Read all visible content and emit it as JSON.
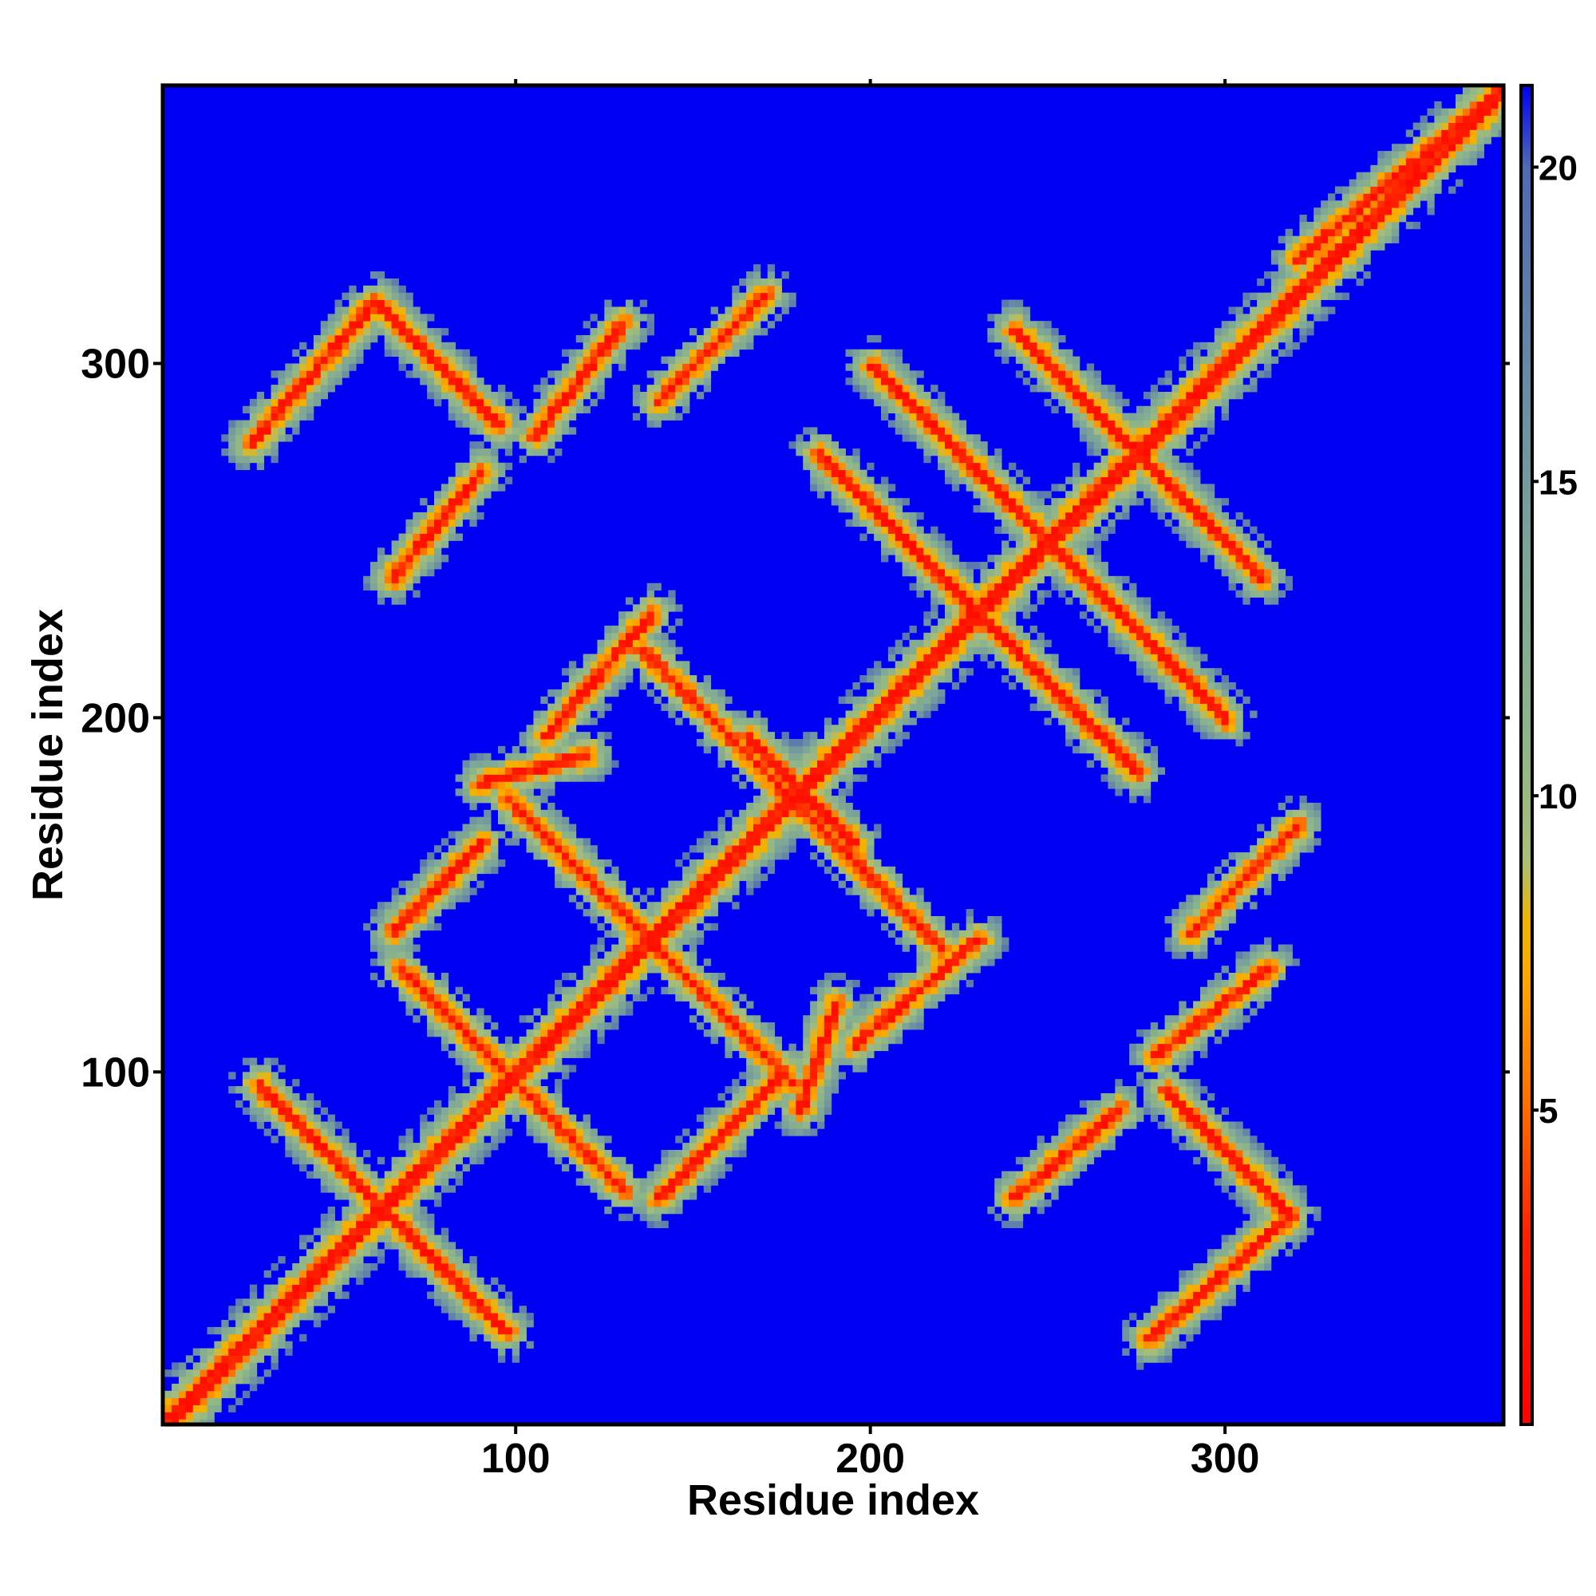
{
  "chart_data": {
    "type": "heatmap",
    "title": "",
    "xlabel": "Residue index",
    "ylabel": "Residue index",
    "xlim": [
      1,
      378
    ],
    "ylim": [
      1,
      378
    ],
    "x_ticks": [
      100,
      200,
      300
    ],
    "y_ticks": [
      100,
      200,
      300
    ],
    "x_tick_labels": [
      "100",
      "200",
      "300"
    ],
    "y_tick_labels": [
      "100",
      "200",
      "300"
    ],
    "grid": false,
    "symmetric": true,
    "background_value": 21.3,
    "colorbar": {
      "position": "right",
      "range": [
        0,
        21.3
      ],
      "ticks": [
        5,
        10,
        15,
        20
      ],
      "tick_labels": [
        "5",
        "10",
        "15",
        "20"
      ],
      "colors": [
        {
          "value": 0,
          "color": "#ff0000"
        },
        {
          "value": 3,
          "color": "#ff2000"
        },
        {
          "value": 5,
          "color": "#ff6a00"
        },
        {
          "value": 7,
          "color": "#ffa500"
        },
        {
          "value": 8,
          "color": "#f0b400"
        },
        {
          "value": 9,
          "color": "#a8be78"
        },
        {
          "value": 11,
          "color": "#8db58a"
        },
        {
          "value": 14,
          "color": "#7ba399"
        },
        {
          "value": 17,
          "color": "#6686a7"
        },
        {
          "value": 20,
          "color": "#4f69b3"
        },
        {
          "value": 21.3,
          "color": "#0000f5"
        }
      ]
    },
    "contact_bands": [
      {
        "kind": "diagonal",
        "i0": 1,
        "j0": 1,
        "i1": 378,
        "j1": 378
      },
      {
        "kind": "anti",
        "i0": 27,
        "j0": 97,
        "i1": 97,
        "j1": 27
      },
      {
        "kind": "anti",
        "i0": 67,
        "j0": 130,
        "i1": 130,
        "j1": 67
      },
      {
        "kind": "anti",
        "i0": 97,
        "j0": 178,
        "i1": 178,
        "j1": 97
      },
      {
        "kind": "anti",
        "i0": 135,
        "j0": 220,
        "i1": 220,
        "j1": 135
      },
      {
        "kind": "anti",
        "i0": 165,
        "j0": 195,
        "i1": 195,
        "j1": 165
      },
      {
        "kind": "anti",
        "i0": 185,
        "j0": 275,
        "i1": 275,
        "j1": 185
      },
      {
        "kind": "anti",
        "i0": 240,
        "j0": 310,
        "i1": 310,
        "j1": 240
      },
      {
        "kind": "anti",
        "i0": 200,
        "j0": 300,
        "i1": 300,
        "j1": 200
      },
      {
        "kind": "par",
        "i0": 25,
        "j0": 278,
        "i1": 60,
        "j1": 318
      },
      {
        "kind": "anti",
        "i0": 60,
        "j0": 318,
        "i1": 95,
        "j1": 283
      },
      {
        "kind": "par",
        "i0": 65,
        "j0": 240,
        "i1": 90,
        "j1": 270
      },
      {
        "kind": "par",
        "i0": 105,
        "j0": 280,
        "i1": 130,
        "j1": 312
      },
      {
        "kind": "par",
        "i0": 108,
        "j0": 195,
        "i1": 138,
        "j1": 230
      },
      {
        "kind": "par",
        "i0": 65,
        "j0": 140,
        "i1": 90,
        "j1": 165
      },
      {
        "kind": "par",
        "i0": 90,
        "j0": 182,
        "i1": 120,
        "j1": 190
      },
      {
        "kind": "par",
        "i0": 140,
        "j0": 65,
        "i1": 175,
        "j1": 100
      },
      {
        "kind": "par",
        "i0": 195,
        "j0": 108,
        "i1": 230,
        "j1": 138
      },
      {
        "kind": "par",
        "i0": 180,
        "j0": 90,
        "i1": 190,
        "j1": 120
      },
      {
        "kind": "par",
        "i0": 240,
        "j0": 65,
        "i1": 270,
        "j1": 90
      },
      {
        "kind": "par",
        "i0": 278,
        "j0": 25,
        "i1": 318,
        "j1": 60
      },
      {
        "kind": "anti",
        "i0": 283,
        "j0": 95,
        "i1": 318,
        "j1": 60
      },
      {
        "kind": "par",
        "i0": 280,
        "j0": 105,
        "i1": 312,
        "j1": 130
      },
      {
        "kind": "par",
        "i0": 290,
        "j0": 140,
        "i1": 320,
        "j1": 170
      },
      {
        "kind": "par",
        "i0": 140,
        "j0": 290,
        "i1": 170,
        "j1": 320
      },
      {
        "kind": "par",
        "i0": 320,
        "j0": 330,
        "i1": 378,
        "j1": 378
      }
    ]
  }
}
